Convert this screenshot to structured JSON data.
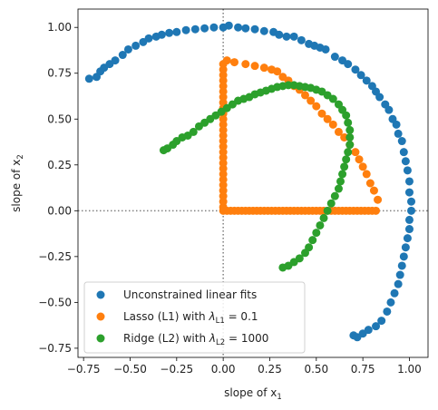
{
  "chart_data": {
    "type": "scatter",
    "xlabel": {
      "text": "slope of x",
      "sub": "1"
    },
    "ylabel": {
      "text": "slope of x",
      "sub": "2"
    },
    "xlim": [
      -0.78,
      1.1
    ],
    "ylim": [
      -0.8,
      1.1
    ],
    "xticks": [
      {
        "v": -0.75,
        "label": "−0.75"
      },
      {
        "v": -0.5,
        "label": "−0.50"
      },
      {
        "v": -0.25,
        "label": "−0.25"
      },
      {
        "v": 0,
        "label": "0.00"
      },
      {
        "v": 0.25,
        "label": "0.25"
      },
      {
        "v": 0.5,
        "label": "0.50"
      },
      {
        "v": 0.75,
        "label": "0.75"
      },
      {
        "v": 1.0,
        "label": "1.00"
      }
    ],
    "yticks": [
      {
        "v": -0.75,
        "label": "−0.75"
      },
      {
        "v": -0.5,
        "label": "−0.50"
      },
      {
        "v": -0.25,
        "label": "−0.25"
      },
      {
        "v": 0,
        "label": "0.00"
      },
      {
        "v": 0.25,
        "label": "0.25"
      },
      {
        "v": 0.5,
        "label": "0.50"
      },
      {
        "v": 0.75,
        "label": "0.75"
      },
      {
        "v": 1.0,
        "label": "1.00"
      }
    ],
    "reference_lines": {
      "x": 0,
      "y": 0,
      "style": "dotted",
      "color": "#808080"
    },
    "grid": false,
    "legend_position": "lower-left",
    "series": [
      {
        "name": "Unconstrained linear fits",
        "legend_parts": [
          {
            "t": "Unconstrained linear fits"
          }
        ],
        "color": "#1f77b4",
        "points": [
          [
            -0.72,
            0.72
          ],
          [
            -0.68,
            0.73
          ],
          [
            -0.66,
            0.76
          ],
          [
            -0.64,
            0.78
          ],
          [
            -0.61,
            0.8
          ],
          [
            -0.58,
            0.82
          ],
          [
            -0.54,
            0.85
          ],
          [
            -0.51,
            0.88
          ],
          [
            -0.47,
            0.9
          ],
          [
            -0.43,
            0.92
          ],
          [
            -0.4,
            0.94
          ],
          [
            -0.36,
            0.95
          ],
          [
            -0.33,
            0.96
          ],
          [
            -0.29,
            0.97
          ],
          [
            -0.25,
            0.975
          ],
          [
            -0.2,
            0.985
          ],
          [
            -0.15,
            0.99
          ],
          [
            -0.1,
            0.995
          ],
          [
            -0.05,
            1.0
          ],
          [
            0.0,
            1.0
          ],
          [
            0.03,
            1.01
          ],
          [
            0.08,
            1.0
          ],
          [
            0.12,
            0.995
          ],
          [
            0.17,
            0.99
          ],
          [
            0.22,
            0.98
          ],
          [
            0.27,
            0.975
          ],
          [
            0.3,
            0.96
          ],
          [
            0.34,
            0.95
          ],
          [
            0.38,
            0.95
          ],
          [
            0.42,
            0.93
          ],
          [
            0.46,
            0.91
          ],
          [
            0.49,
            0.9
          ],
          [
            0.52,
            0.89
          ],
          [
            0.55,
            0.88
          ],
          [
            0.6,
            0.84
          ],
          [
            0.64,
            0.82
          ],
          [
            0.67,
            0.8
          ],
          [
            0.71,
            0.77
          ],
          [
            0.74,
            0.74
          ],
          [
            0.77,
            0.71
          ],
          [
            0.8,
            0.68
          ],
          [
            0.82,
            0.65
          ],
          [
            0.84,
            0.62
          ],
          [
            0.87,
            0.58
          ],
          [
            0.89,
            0.55
          ],
          [
            0.91,
            0.5
          ],
          [
            0.93,
            0.47
          ],
          [
            0.94,
            0.42
          ],
          [
            0.96,
            0.38
          ],
          [
            0.97,
            0.32
          ],
          [
            0.98,
            0.27
          ],
          [
            0.99,
            0.22
          ],
          [
            1.0,
            0.16
          ],
          [
            1.0,
            0.1
          ],
          [
            1.01,
            0.05
          ],
          [
            1.01,
            0.0
          ],
          [
            1.0,
            -0.05
          ],
          [
            1.0,
            -0.1
          ],
          [
            0.99,
            -0.15
          ],
          [
            0.98,
            -0.2
          ],
          [
            0.97,
            -0.25
          ],
          [
            0.96,
            -0.3
          ],
          [
            0.95,
            -0.35
          ],
          [
            0.94,
            -0.4
          ],
          [
            0.92,
            -0.45
          ],
          [
            0.9,
            -0.5
          ],
          [
            0.88,
            -0.55
          ],
          [
            0.85,
            -0.6
          ],
          [
            0.82,
            -0.63
          ],
          [
            0.78,
            -0.65
          ],
          [
            0.75,
            -0.67
          ],
          [
            0.72,
            -0.69
          ],
          [
            0.7,
            -0.68
          ]
        ]
      },
      {
        "name": "Lasso (L1) with λL1 = 0.1",
        "legend_parts": [
          {
            "t": "Lasso (L1) with "
          },
          {
            "t": "λ",
            "italic": true
          },
          {
            "t": "L1",
            "sub": true
          },
          {
            "t": " = 0.1"
          }
        ],
        "color": "#ff7f0e",
        "points": [
          [
            0.0,
            0.0
          ],
          [
            0.02,
            0.0
          ],
          [
            0.04,
            0.0
          ],
          [
            0.06,
            0.0
          ],
          [
            0.08,
            0.0
          ],
          [
            0.1,
            0.0
          ],
          [
            0.12,
            0.0
          ],
          [
            0.14,
            0.0
          ],
          [
            0.16,
            0.0
          ],
          [
            0.18,
            0.0
          ],
          [
            0.2,
            0.0
          ],
          [
            0.22,
            0.0
          ],
          [
            0.24,
            0.0
          ],
          [
            0.26,
            0.0
          ],
          [
            0.28,
            0.0
          ],
          [
            0.3,
            0.0
          ],
          [
            0.32,
            0.0
          ],
          [
            0.34,
            0.0
          ],
          [
            0.36,
            0.0
          ],
          [
            0.38,
            0.0
          ],
          [
            0.4,
            0.0
          ],
          [
            0.42,
            0.0
          ],
          [
            0.44,
            0.0
          ],
          [
            0.46,
            0.0
          ],
          [
            0.48,
            0.0
          ],
          [
            0.5,
            0.0
          ],
          [
            0.52,
            0.0
          ],
          [
            0.54,
            0.0
          ],
          [
            0.56,
            0.0
          ],
          [
            0.58,
            0.0
          ],
          [
            0.6,
            0.0
          ],
          [
            0.62,
            0.0
          ],
          [
            0.64,
            0.0
          ],
          [
            0.66,
            0.0
          ],
          [
            0.68,
            0.0
          ],
          [
            0.7,
            0.0
          ],
          [
            0.72,
            0.0
          ],
          [
            0.74,
            0.0
          ],
          [
            0.76,
            0.0
          ],
          [
            0.78,
            0.0
          ],
          [
            0.8,
            0.0
          ],
          [
            0.82,
            0.0
          ],
          [
            0.0,
            0.02
          ],
          [
            0.0,
            0.05
          ],
          [
            0.0,
            0.08
          ],
          [
            0.0,
            0.11
          ],
          [
            0.0,
            0.14
          ],
          [
            0.0,
            0.17
          ],
          [
            0.0,
            0.2
          ],
          [
            0.0,
            0.23
          ],
          [
            0.0,
            0.26
          ],
          [
            0.0,
            0.29
          ],
          [
            0.0,
            0.32
          ],
          [
            0.0,
            0.35
          ],
          [
            0.0,
            0.38
          ],
          [
            0.0,
            0.41
          ],
          [
            0.0,
            0.44
          ],
          [
            0.0,
            0.47
          ],
          [
            0.0,
            0.5
          ],
          [
            0.0,
            0.53
          ],
          [
            0.0,
            0.56
          ],
          [
            0.0,
            0.59
          ],
          [
            0.0,
            0.62
          ],
          [
            0.0,
            0.65
          ],
          [
            0.0,
            0.68
          ],
          [
            0.0,
            0.71
          ],
          [
            0.0,
            0.74
          ],
          [
            0.0,
            0.77
          ],
          [
            0.0,
            0.8
          ],
          [
            0.02,
            0.82
          ],
          [
            0.06,
            0.81
          ],
          [
            0.12,
            0.8
          ],
          [
            0.17,
            0.79
          ],
          [
            0.22,
            0.78
          ],
          [
            0.26,
            0.77
          ],
          [
            0.29,
            0.76
          ],
          [
            0.32,
            0.73
          ],
          [
            0.35,
            0.71
          ],
          [
            0.38,
            0.68
          ],
          [
            0.41,
            0.66
          ],
          [
            0.44,
            0.63
          ],
          [
            0.47,
            0.6
          ],
          [
            0.5,
            0.57
          ],
          [
            0.53,
            0.53
          ],
          [
            0.56,
            0.5
          ],
          [
            0.59,
            0.47
          ],
          [
            0.62,
            0.43
          ],
          [
            0.65,
            0.4
          ],
          [
            0.68,
            0.36
          ],
          [
            0.71,
            0.32
          ],
          [
            0.73,
            0.28
          ],
          [
            0.75,
            0.24
          ],
          [
            0.77,
            0.2
          ],
          [
            0.79,
            0.15
          ],
          [
            0.81,
            0.11
          ],
          [
            0.83,
            0.06
          ]
        ]
      },
      {
        "name": "Ridge (L2) with λL2 = 1000",
        "legend_parts": [
          {
            "t": "Ridge (L2) with "
          },
          {
            "t": "λ",
            "italic": true
          },
          {
            "t": "L2",
            "sub": true
          },
          {
            "t": " = 1000"
          }
        ],
        "color": "#2ca02c",
        "points": [
          [
            -0.32,
            0.33
          ],
          [
            -0.3,
            0.34
          ],
          [
            -0.27,
            0.36
          ],
          [
            -0.25,
            0.38
          ],
          [
            -0.22,
            0.4
          ],
          [
            -0.19,
            0.41
          ],
          [
            -0.16,
            0.43
          ],
          [
            -0.13,
            0.46
          ],
          [
            -0.1,
            0.48
          ],
          [
            -0.07,
            0.5
          ],
          [
            -0.04,
            0.52
          ],
          [
            -0.01,
            0.54
          ],
          [
            0.02,
            0.56
          ],
          [
            0.05,
            0.58
          ],
          [
            0.08,
            0.6
          ],
          [
            0.11,
            0.61
          ],
          [
            0.14,
            0.62
          ],
          [
            0.17,
            0.635
          ],
          [
            0.2,
            0.645
          ],
          [
            0.23,
            0.655
          ],
          [
            0.26,
            0.665
          ],
          [
            0.29,
            0.675
          ],
          [
            0.32,
            0.68
          ],
          [
            0.35,
            0.685
          ],
          [
            0.38,
            0.685
          ],
          [
            0.41,
            0.68
          ],
          [
            0.44,
            0.675
          ],
          [
            0.47,
            0.67
          ],
          [
            0.5,
            0.66
          ],
          [
            0.53,
            0.65
          ],
          [
            0.56,
            0.63
          ],
          [
            0.59,
            0.61
          ],
          [
            0.62,
            0.58
          ],
          [
            0.64,
            0.55
          ],
          [
            0.66,
            0.52
          ],
          [
            0.67,
            0.48
          ],
          [
            0.68,
            0.44
          ],
          [
            0.68,
            0.4
          ],
          [
            0.68,
            0.36
          ],
          [
            0.67,
            0.32
          ],
          [
            0.66,
            0.28
          ],
          [
            0.65,
            0.24
          ],
          [
            0.64,
            0.2
          ],
          [
            0.63,
            0.16
          ],
          [
            0.62,
            0.12
          ],
          [
            0.6,
            0.08
          ],
          [
            0.58,
            0.04
          ],
          [
            0.56,
            0.0
          ],
          [
            0.54,
            -0.04
          ],
          [
            0.52,
            -0.08
          ],
          [
            0.5,
            -0.12
          ],
          [
            0.48,
            -0.16
          ],
          [
            0.46,
            -0.2
          ],
          [
            0.44,
            -0.23
          ],
          [
            0.41,
            -0.26
          ],
          [
            0.38,
            -0.28
          ],
          [
            0.35,
            -0.3
          ],
          [
            0.32,
            -0.31
          ]
        ]
      }
    ]
  }
}
